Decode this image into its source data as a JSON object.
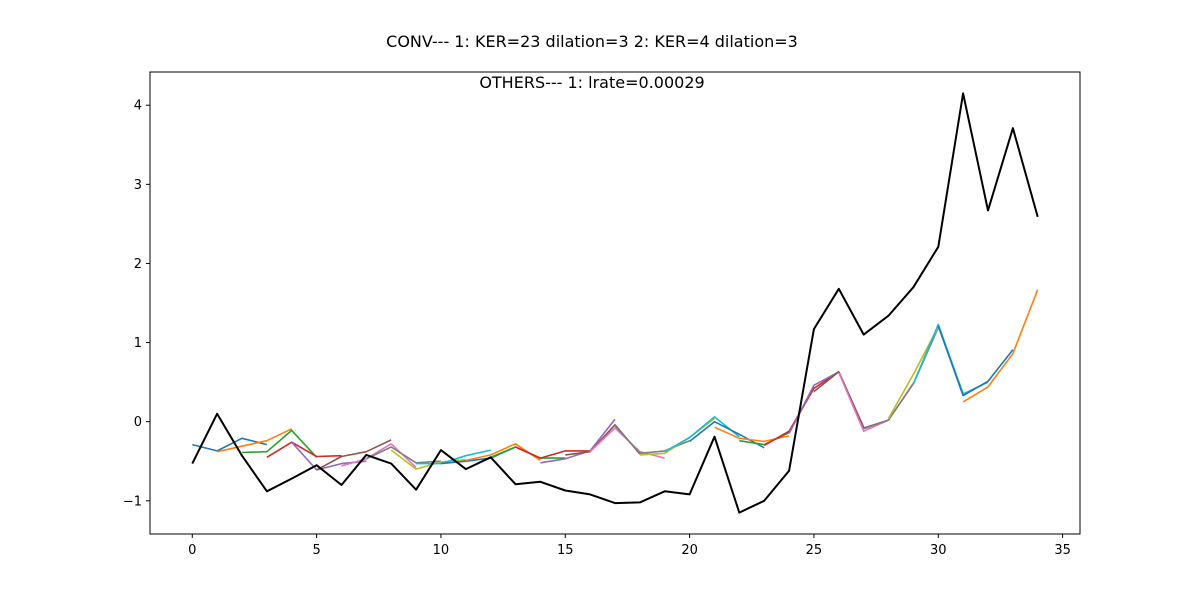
{
  "chart_data": {
    "type": "line",
    "title": "CONV--- 1: KER=23   dilation=3   2: KER=4   dilation=3",
    "subtitle": "OTHERS--- 1: lrate=0.00029",
    "xlim": [
      -1.7,
      35.7
    ],
    "ylim": [
      -1.42,
      4.42
    ],
    "xticks": [
      0,
      5,
      10,
      15,
      20,
      25,
      30,
      35
    ],
    "yticks": [
      -1,
      0,
      1,
      2,
      3,
      4
    ],
    "grid": false,
    "legend": "none",
    "series": [
      {
        "color": "#1f77b4",
        "x": [
          0,
          1,
          2,
          3
        ],
        "y": [
          -0.29,
          -0.37,
          -0.21,
          -0.29
        ]
      },
      {
        "color": "#ff7f0e",
        "x": [
          1,
          2,
          3,
          4
        ],
        "y": [
          -0.38,
          -0.31,
          -0.24,
          -0.09
        ]
      },
      {
        "color": "#2ca02c",
        "x": [
          2,
          3,
          4,
          5
        ],
        "y": [
          -0.39,
          -0.38,
          -0.11,
          -0.45
        ]
      },
      {
        "color": "#d62728",
        "x": [
          3,
          4,
          5,
          6
        ],
        "y": [
          -0.45,
          -0.26,
          -0.44,
          -0.43
        ]
      },
      {
        "color": "#9467bd",
        "x": [
          4,
          5,
          6,
          7
        ],
        "y": [
          -0.26,
          -0.61,
          -0.53,
          -0.5
        ]
      },
      {
        "color": "#8c564b",
        "x": [
          5,
          6,
          7,
          8
        ],
        "y": [
          -0.61,
          -0.44,
          -0.38,
          -0.23
        ]
      },
      {
        "color": "#e377c2",
        "x": [
          6,
          7,
          8,
          9
        ],
        "y": [
          -0.56,
          -0.47,
          -0.28,
          -0.58
        ]
      },
      {
        "color": "#7f7f7f",
        "x": [
          7,
          8,
          9,
          10
        ],
        "y": [
          -0.47,
          -0.32,
          -0.52,
          -0.5
        ]
      },
      {
        "color": "#bcbd22",
        "x": [
          8,
          9,
          10,
          11
        ],
        "y": [
          -0.36,
          -0.6,
          -0.51,
          -0.48
        ]
      },
      {
        "color": "#17becf",
        "x": [
          9,
          10,
          11,
          12
        ],
        "y": [
          -0.53,
          -0.53,
          -0.43,
          -0.36
        ]
      },
      {
        "color": "#1f77b4",
        "x": [
          10,
          11,
          12,
          13
        ],
        "y": [
          -0.53,
          -0.5,
          -0.46,
          -0.32
        ]
      },
      {
        "color": "#ff7f0e",
        "x": [
          11,
          12,
          13,
          14
        ],
        "y": [
          -0.49,
          -0.42,
          -0.28,
          -0.49
        ]
      },
      {
        "color": "#2ca02c",
        "x": [
          12,
          13,
          14,
          15
        ],
        "y": [
          -0.45,
          -0.32,
          -0.46,
          -0.46
        ]
      },
      {
        "color": "#d62728",
        "x": [
          13,
          14,
          15,
          16
        ],
        "y": [
          -0.32,
          -0.46,
          -0.37,
          -0.37
        ]
      },
      {
        "color": "#9467bd",
        "x": [
          14,
          15,
          16,
          17
        ],
        "y": [
          -0.52,
          -0.47,
          -0.37,
          0.03
        ]
      },
      {
        "color": "#8c564b",
        "x": [
          15,
          16,
          17,
          18
        ],
        "y": [
          -0.42,
          -0.38,
          -0.04,
          -0.41
        ]
      },
      {
        "color": "#e377c2",
        "x": [
          16,
          17,
          18,
          19
        ],
        "y": [
          -0.38,
          -0.08,
          -0.38,
          -0.46
        ]
      },
      {
        "color": "#7f7f7f",
        "x": [
          17,
          18,
          19,
          20
        ],
        "y": [
          -0.05,
          -0.4,
          -0.37,
          -0.24
        ]
      },
      {
        "color": "#bcbd22",
        "x": [
          18,
          19,
          20,
          21
        ],
        "y": [
          -0.42,
          -0.4,
          -0.2,
          0.04
        ]
      },
      {
        "color": "#17becf",
        "x": [
          19,
          20,
          21,
          22
        ],
        "y": [
          -0.38,
          -0.2,
          0.06,
          -0.19
        ]
      },
      {
        "color": "#1f77b4",
        "x": [
          20,
          21,
          22,
          23
        ],
        "y": [
          -0.25,
          0.0,
          -0.16,
          -0.33
        ]
      },
      {
        "color": "#ff7f0e",
        "x": [
          21,
          22,
          23,
          24
        ],
        "y": [
          -0.07,
          -0.21,
          -0.25,
          -0.18
        ]
      },
      {
        "color": "#2ca02c",
        "x": [
          22,
          23,
          24,
          25
        ],
        "y": [
          -0.24,
          -0.29,
          -0.14,
          0.44
        ]
      },
      {
        "color": "#d62728",
        "x": [
          23,
          24,
          25,
          26
        ],
        "y": [
          -0.3,
          -0.12,
          0.42,
          0.63
        ]
      },
      {
        "color": "#9467bd",
        "x": [
          24,
          25,
          26,
          27
        ],
        "y": [
          -0.15,
          0.46,
          0.63,
          -0.07
        ]
      },
      {
        "color": "#8c564b",
        "x": [
          25,
          26,
          27,
          28
        ],
        "y": [
          0.38,
          0.63,
          -0.08,
          0.02
        ]
      },
      {
        "color": "#e377c2",
        "x": [
          26,
          27,
          28,
          29
        ],
        "y": [
          0.62,
          -0.12,
          0.02,
          0.49
        ]
      },
      {
        "color": "#7f7f7f",
        "x": [
          27,
          28,
          29,
          30
        ],
        "y": [
          -0.09,
          0.02,
          0.48,
          1.19
        ]
      },
      {
        "color": "#bcbd22",
        "x": [
          28,
          29,
          30,
          31
        ],
        "y": [
          0.04,
          0.6,
          1.2,
          0.36
        ]
      },
      {
        "color": "#17becf",
        "x": [
          29,
          30,
          31,
          32
        ],
        "y": [
          0.48,
          1.23,
          0.35,
          0.5
        ]
      },
      {
        "color": "#1f77b4",
        "x": [
          30,
          31,
          32,
          33
        ],
        "y": [
          1.21,
          0.33,
          0.51,
          0.91
        ]
      },
      {
        "color": "#ff7f0e",
        "x": [
          31,
          32,
          33,
          34
        ],
        "y": [
          0.25,
          0.44,
          0.86,
          1.67
        ]
      },
      {
        "color": "#000000",
        "x": [
          0,
          1,
          2,
          3,
          4,
          5,
          6,
          7,
          8,
          9,
          10,
          11,
          12,
          13,
          14,
          15,
          16,
          17,
          18,
          19,
          20,
          21,
          22,
          23,
          24,
          25,
          26,
          27,
          28,
          29,
          30,
          31,
          32,
          33,
          34
        ],
        "y": [
          -0.53,
          0.1,
          -0.43,
          -0.88,
          -0.72,
          -0.55,
          -0.8,
          -0.42,
          -0.53,
          -0.86,
          -0.36,
          -0.6,
          -0.45,
          -0.79,
          -0.76,
          -0.87,
          -0.92,
          -1.03,
          -1.02,
          -0.88,
          -0.92,
          -0.19,
          -1.15,
          -1.0,
          -0.62,
          1.17,
          1.68,
          1.1,
          1.34,
          1.7,
          2.21,
          4.15,
          2.67,
          3.71,
          2.59
        ]
      }
    ]
  }
}
